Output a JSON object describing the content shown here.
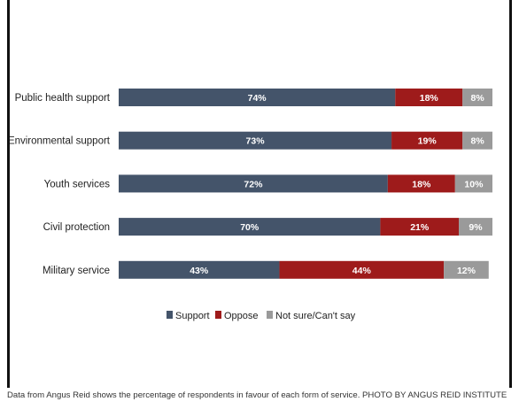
{
  "chart_data": {
    "type": "bar",
    "orientation": "horizontal",
    "stacked": true,
    "categories": [
      "Public health support",
      "Environmental support",
      "Youth services",
      "Civil protection",
      "Military service"
    ],
    "series": [
      {
        "name": "Support",
        "values": [
          74,
          73,
          72,
          70,
          43
        ],
        "labels": [
          "74%",
          "73%",
          "72%",
          "70%",
          "43%"
        ],
        "color": "#44546a"
      },
      {
        "name": "Oppose",
        "values": [
          18,
          19,
          18,
          21,
          44
        ],
        "labels": [
          "18%",
          "19%",
          "18%",
          "21%",
          "44%"
        ],
        "color": "#9e1b1b"
      },
      {
        "name": "Not sure/Can't say",
        "values": [
          8,
          8,
          10,
          9,
          12
        ],
        "labels": [
          "8%",
          "8%",
          "10%",
          "9%",
          "12%"
        ],
        "color": "#9a9a9a"
      }
    ],
    "xlim": [
      0,
      100
    ],
    "grid": false,
    "legend_position": "bottom"
  },
  "caption": "Data from Angus Reid shows the percentage of respondents in favour of each form of service. PHOTO BY ANGUS REID INSTITUTE",
  "colors": {
    "background": "#ffffff",
    "frame": "#111111",
    "label_text": "#222222"
  }
}
